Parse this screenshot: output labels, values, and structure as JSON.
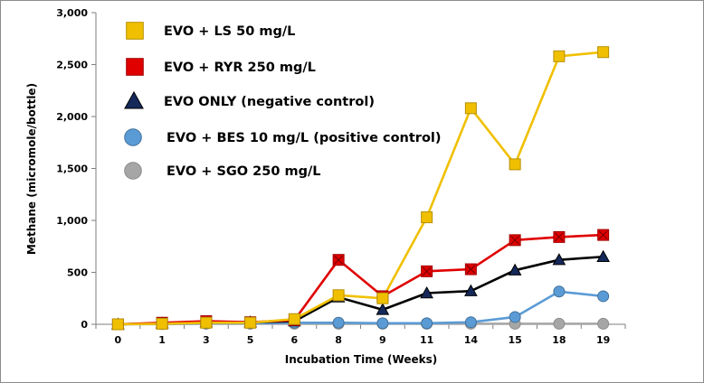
{
  "chart_data": {
    "type": "line",
    "xlabel": "Incubation Time (Weeks)",
    "ylabel": "Methane (micromole/bottle)",
    "categories": [
      "0",
      "1",
      "3",
      "5",
      "6",
      "8",
      "9",
      "11",
      "14",
      "15",
      "18",
      "19"
    ],
    "y_ticks": [
      "0",
      "500",
      "1,000",
      "1,500",
      "2,000",
      "2,500",
      "3,000"
    ],
    "ylim": [
      0,
      3000
    ],
    "grid": false,
    "legend_position": "top-left",
    "series": [
      {
        "name": "EVO + LS 50 mg/L",
        "marker": "square",
        "color": "#f0c000",
        "marker_fill": "#f0c000",
        "values": [
          0,
          5,
          15,
          15,
          50,
          280,
          250,
          1030,
          2080,
          1540,
          2580,
          2620
        ]
      },
      {
        "name": "EVO + RYR 250 mg/L",
        "marker": "square-x",
        "color": "#e00000",
        "marker_fill": "#e00000",
        "values": [
          0,
          15,
          30,
          20,
          40,
          620,
          270,
          510,
          530,
          810,
          840,
          860
        ]
      },
      {
        "name": "EVO ONLY (negative control)",
        "marker": "triangle",
        "color": "#000000",
        "marker_fill": "#14285a",
        "values": [
          0,
          10,
          20,
          20,
          30,
          260,
          140,
          300,
          320,
          520,
          620,
          650
        ]
      },
      {
        "name": "EVO + BES 10 mg/L (positive control)",
        "marker": "circle",
        "color": "#5b9bd5",
        "marker_fill": "#5b9bd5",
        "values": [
          0,
          5,
          10,
          10,
          15,
          15,
          10,
          10,
          20,
          70,
          315,
          270
        ]
      },
      {
        "name": "EVO + SGO 250 mg/L",
        "marker": "circle",
        "color": "#a6a6a6",
        "marker_fill": "#a6a6a6",
        "values": [
          0,
          2,
          5,
          5,
          5,
          5,
          5,
          5,
          5,
          5,
          5,
          5
        ]
      }
    ]
  }
}
